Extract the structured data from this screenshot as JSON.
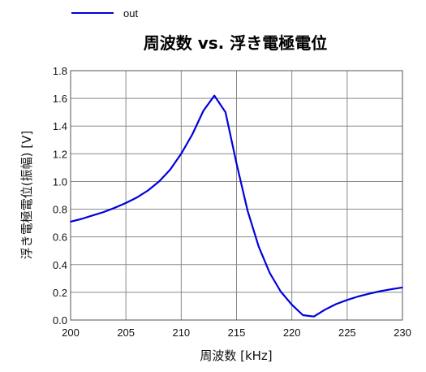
{
  "chart_data": {
    "type": "line",
    "title": "周波数 vs. 浮き電極電位",
    "xlabel": "周波数 [kHz]",
    "ylabel": "浮き電極電位(振幅) [V]",
    "xlim": [
      200,
      230
    ],
    "ylim": [
      0,
      1.8
    ],
    "xticks": [
      200,
      205,
      210,
      215,
      220,
      225,
      230
    ],
    "yticks": [
      0.0,
      0.2,
      0.4,
      0.6,
      0.8,
      1.0,
      1.2,
      1.4,
      1.6,
      1.8
    ],
    "ytick_labels": [
      "0.0",
      "0.2",
      "0.4",
      "0.6",
      "0.8",
      "1.0",
      "1.2",
      "1.4",
      "1.6",
      "1.8"
    ],
    "grid": true,
    "legend_position": "top-left",
    "series": [
      {
        "name": "out",
        "color": "#0000dd",
        "x": [
          200,
          201,
          202,
          203,
          204,
          205,
          206,
          207,
          208,
          209,
          210,
          211,
          212,
          213,
          214,
          215,
          216,
          217,
          218,
          219,
          220,
          221,
          222,
          223,
          224,
          225,
          226,
          227,
          228,
          229,
          230
        ],
        "y": [
          0.71,
          0.73,
          0.755,
          0.78,
          0.81,
          0.845,
          0.885,
          0.935,
          1.0,
          1.085,
          1.2,
          1.34,
          1.51,
          1.62,
          1.5,
          1.13,
          0.79,
          0.53,
          0.34,
          0.205,
          0.11,
          0.035,
          0.025,
          0.075,
          0.115,
          0.145,
          0.17,
          0.19,
          0.208,
          0.222,
          0.235
        ]
      }
    ]
  }
}
